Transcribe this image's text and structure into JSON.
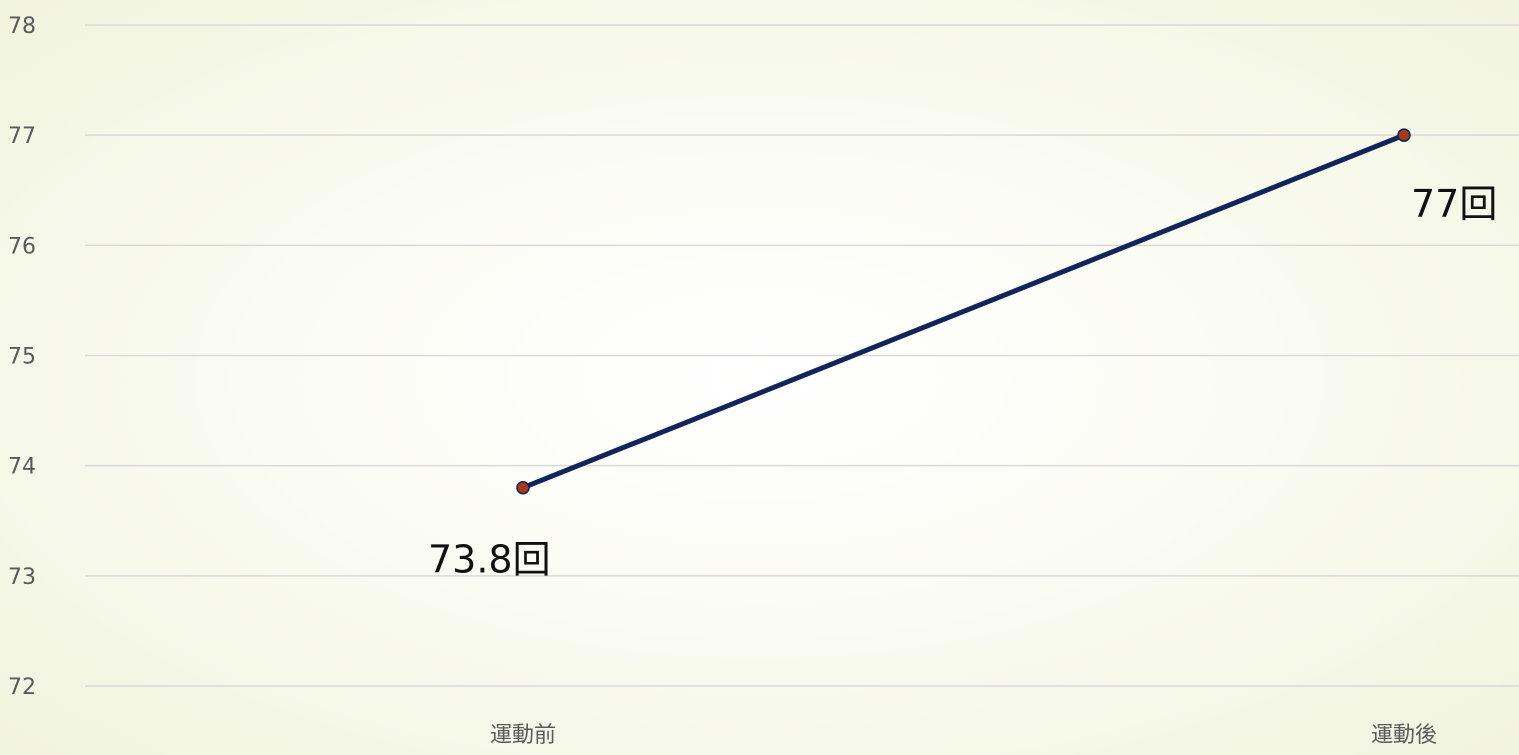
{
  "chart_data": {
    "type": "line",
    "categories": [
      "運動前",
      "運動後"
    ],
    "series": [
      {
        "values": [
          73.8,
          77
        ],
        "data_labels": [
          "73.8回",
          "77回"
        ],
        "line_color": "#12245a",
        "marker_color": "#a53a1c"
      }
    ],
    "yticks": [
      "72",
      "73",
      "74",
      "75",
      "76",
      "77",
      "78"
    ],
    "ylim": [
      72,
      78
    ],
    "grid": true,
    "gridline_color": "#d9d9d9"
  }
}
